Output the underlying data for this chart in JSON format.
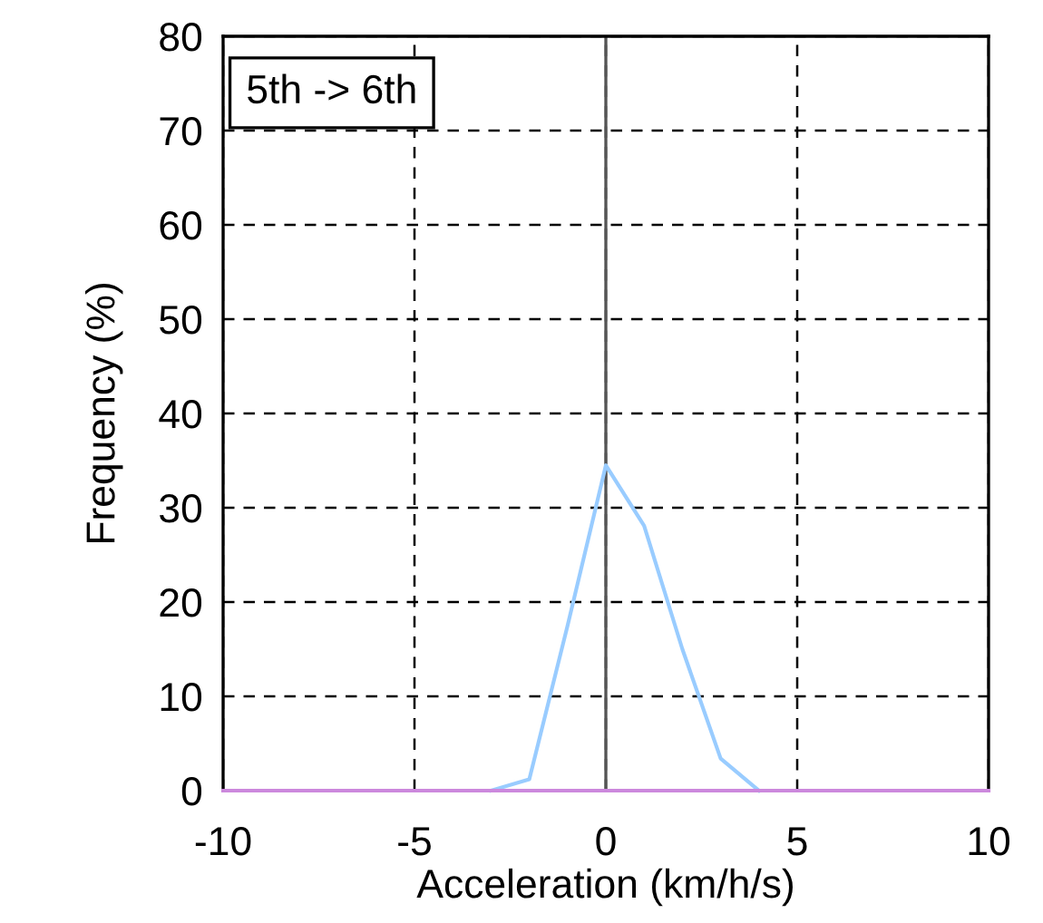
{
  "chart_data": {
    "type": "line",
    "xlabel": "Acceleration (km/h/s)",
    "ylabel": "Frequency (%)",
    "x": [
      -10,
      -9,
      -8,
      -7,
      -6,
      -5,
      -4,
      -3,
      -2,
      -1,
      0,
      1,
      2,
      3,
      4,
      5,
      6,
      7,
      8,
      9,
      10
    ],
    "series": [
      {
        "color": "#99ccff",
        "values": [
          null,
          null,
          null,
          null,
          null,
          null,
          null,
          0,
          1.2,
          17.5,
          34.5,
          28.1,
          15,
          3.4,
          0,
          null,
          null,
          null,
          null,
          null,
          null
        ]
      },
      {
        "color": "#cc88dd",
        "values": [
          0,
          0,
          0,
          0,
          0,
          0,
          0,
          0,
          0,
          0,
          0,
          0,
          0,
          0,
          0,
          0,
          0,
          0,
          0,
          0,
          0
        ]
      }
    ],
    "xlim": [
      -10,
      10
    ],
    "xticks": [
      -10,
      -5,
      0,
      5,
      10
    ],
    "ylim": [
      0,
      80
    ],
    "yticks": [
      0,
      10,
      20,
      30,
      40,
      50,
      60,
      70,
      80
    ],
    "grid": true,
    "legend": false,
    "marker": "none",
    "line_style": "solid",
    "ref_lines": [
      {
        "axis": "x",
        "value": 0,
        "color": "#555555",
        "line_style": "solid"
      }
    ],
    "annotations": [
      "5th -> 6th"
    ]
  }
}
